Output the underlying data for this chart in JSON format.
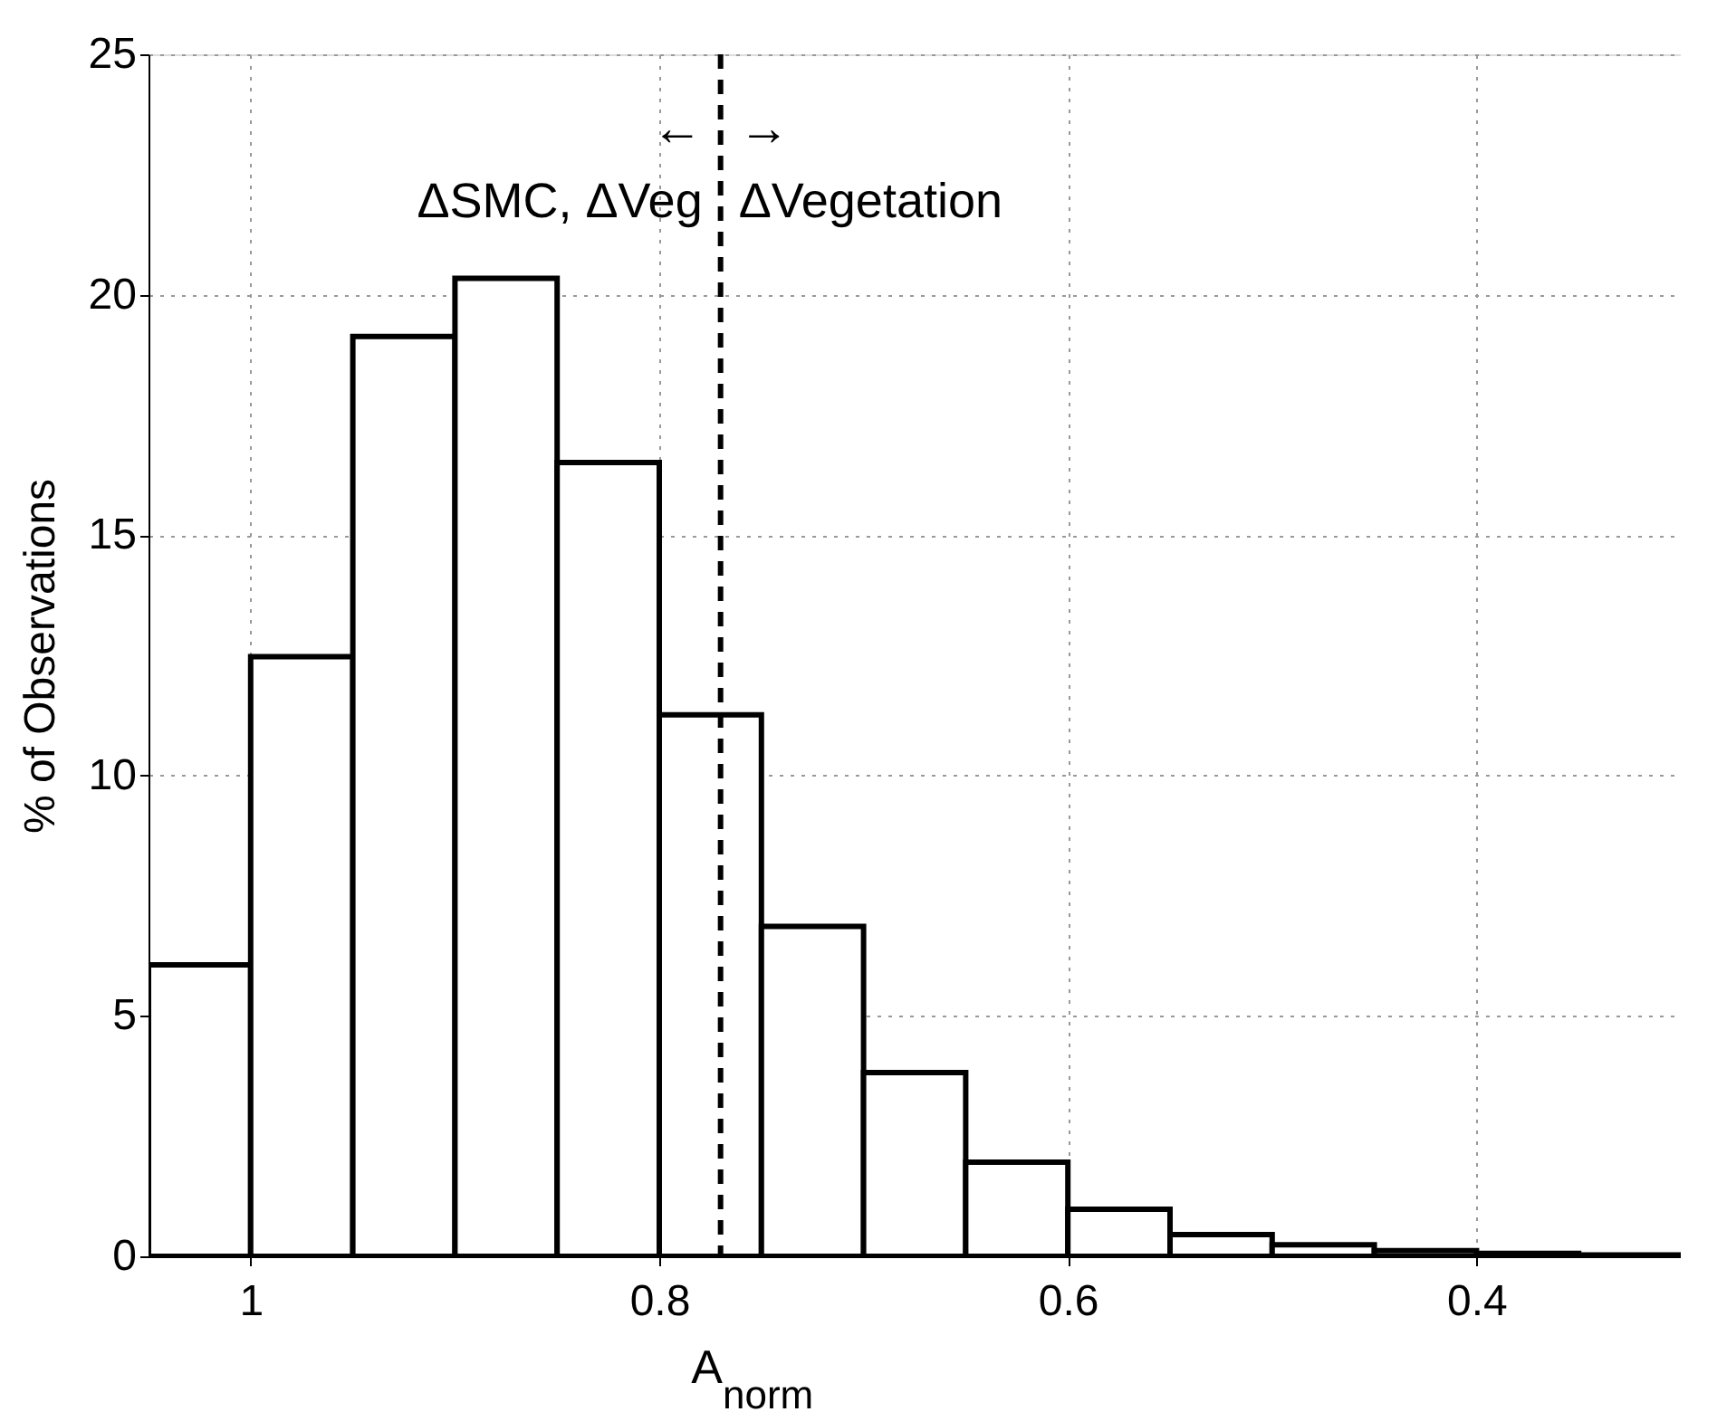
{
  "chart_data": {
    "type": "histogram",
    "bins": [
      1.05,
      1.0,
      0.95,
      0.9,
      0.85,
      0.8,
      0.75,
      0.7,
      0.65,
      0.6,
      0.55,
      0.5,
      0.45,
      0.4,
      0.35,
      0.3
    ],
    "values": [
      6.06,
      12.47,
      19.13,
      20.34,
      16.51,
      11.26,
      6.86,
      3.82,
      1.96,
      0.98,
      0.45,
      0.24,
      0.12,
      0.06,
      0.03
    ],
    "color": "#ffffff",
    "xlabel": "A$_{norm}$",
    "ylabel": "% of Observations",
    "xlim": [
      1.05,
      0.3
    ],
    "xticks": [
      {
        "value": 1.0,
        "label": "1"
      },
      0.8,
      0.6,
      0.4
    ],
    "ylim": [
      0,
      25
    ],
    "yticks": [
      0,
      5,
      10,
      15,
      20,
      25
    ],
    "grid": true,
    "ref_lines": [
      {
        "axis": "x",
        "value": 0.77,
        "line_style": "dashed",
        "color": "#000000"
      }
    ],
    "annotations": [
      "←",
      "→",
      "ΔSMC, ΔVeg",
      "ΔVegetation"
    ]
  }
}
